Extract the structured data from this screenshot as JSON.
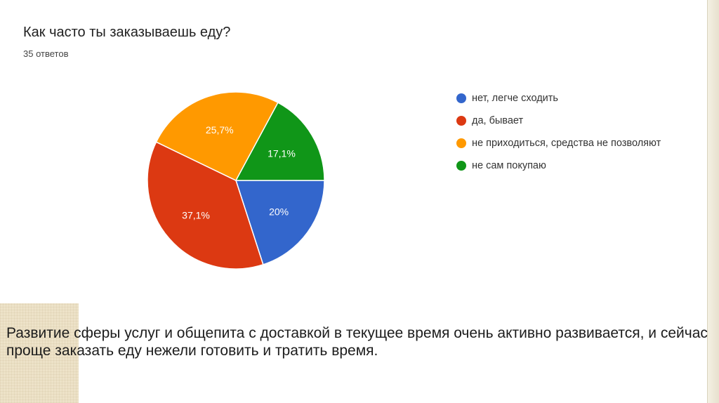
{
  "chart_data": {
    "type": "pie",
    "title": "Как часто ты заказываешь еду?",
    "subtitle": "35 ответов",
    "slices": [
      {
        "label": "нет, легче сходить",
        "value": 20,
        "display": "20%",
        "color": "#3366cc"
      },
      {
        "label": "да, бывает",
        "value": 37.1,
        "display": "37,1%",
        "color": "#dc3912"
      },
      {
        "label": "не приходиться, средства не позволяют",
        "value": 25.7,
        "display": "25,7%",
        "color": "#ff9900"
      },
      {
        "label": "не сам покупаю",
        "value": 17.1,
        "display": "17,1%",
        "color": "#109618"
      }
    ],
    "legend_position": "right"
  },
  "caption": "Развитие сферы услуг и общепита с доставкой в текущее время очень активно развивается, и сейчас проще заказать еду нежели готовить и тратить время."
}
